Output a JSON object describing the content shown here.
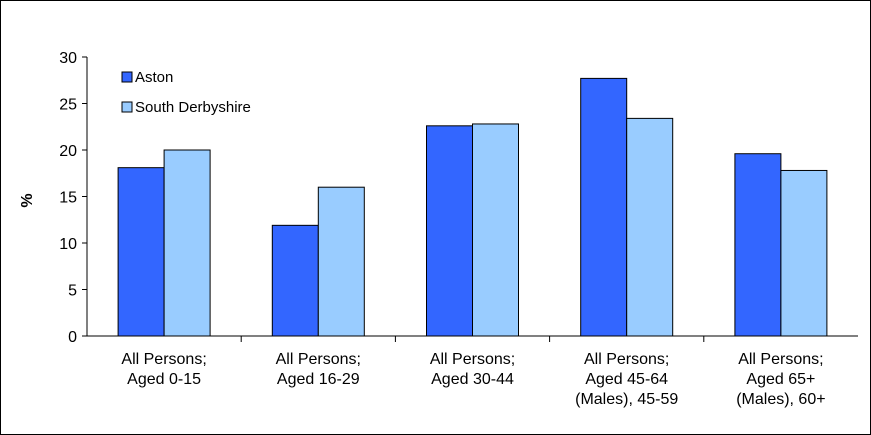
{
  "chart_data": {
    "type": "bar",
    "title": "",
    "xlabel": "",
    "ylabel": "%",
    "ylim": [
      0,
      30
    ],
    "yticks": [
      0,
      5,
      10,
      15,
      20,
      25,
      30
    ],
    "grid": false,
    "legend_position": "top-left",
    "categories": [
      [
        "All Persons;",
        "Aged 0-15"
      ],
      [
        "All Persons;",
        "Aged 16-29"
      ],
      [
        "All Persons;",
        "Aged 30-44"
      ],
      [
        "All Persons;",
        "Aged 45-64",
        "(Males), 45-59"
      ],
      [
        "All Persons;",
        "Aged 65+",
        "(Males), 60+"
      ]
    ],
    "series": [
      {
        "name": "Aston",
        "color": "#3366ff",
        "values": [
          18.1,
          11.9,
          22.6,
          27.7,
          19.6
        ]
      },
      {
        "name": "South Derbyshire",
        "color": "#99ccff",
        "values": [
          20.0,
          16.0,
          22.8,
          23.4,
          17.8
        ]
      }
    ]
  }
}
